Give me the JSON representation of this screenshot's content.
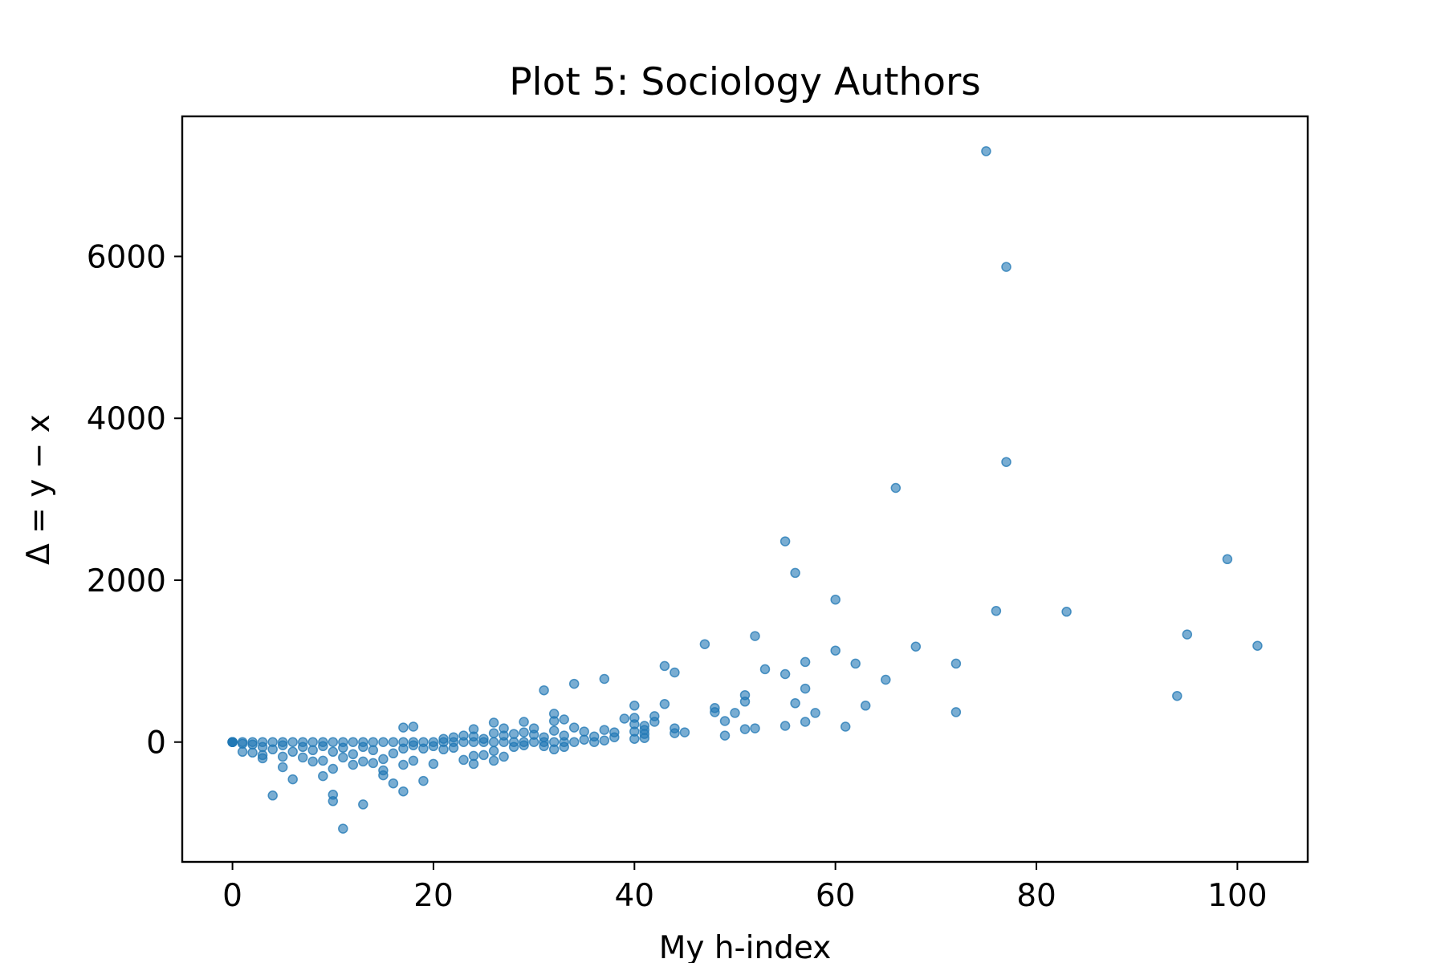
{
  "chart_data": {
    "type": "scatter",
    "title": "Plot 5: Sociology Authors",
    "xlabel": "My h-index",
    "ylabel": "Δ = y − x",
    "xlim": [
      -5,
      107
    ],
    "ylim": [
      -1480,
      7730
    ],
    "xticks": [
      0,
      20,
      40,
      60,
      80,
      100
    ],
    "yticks": [
      0,
      2000,
      4000,
      6000
    ],
    "xtick_labels": [
      "0",
      "20",
      "40",
      "60",
      "80",
      "100"
    ],
    "ytick_labels": [
      "0",
      "2000",
      "4000",
      "6000"
    ],
    "grid": false,
    "legend": "none",
    "marker_color": "#1f77b4",
    "marker_alpha": 0.6,
    "series": [
      {
        "points": [
          [
            0,
            0
          ],
          [
            0,
            0
          ],
          [
            0,
            0
          ],
          [
            0,
            0
          ],
          [
            0,
            0
          ],
          [
            1,
            0
          ],
          [
            1,
            -20
          ],
          [
            1,
            -120
          ],
          [
            2,
            0
          ],
          [
            2,
            -30
          ],
          [
            2,
            -130
          ],
          [
            3,
            0
          ],
          [
            3,
            -60
          ],
          [
            3,
            -160
          ],
          [
            3,
            -200
          ],
          [
            4,
            0
          ],
          [
            4,
            -90
          ],
          [
            4,
            -660
          ],
          [
            5,
            0
          ],
          [
            5,
            -40
          ],
          [
            5,
            -180
          ],
          [
            5,
            -310
          ],
          [
            6,
            0
          ],
          [
            6,
            -120
          ],
          [
            6,
            -460
          ],
          [
            7,
            0
          ],
          [
            7,
            -60
          ],
          [
            7,
            -190
          ],
          [
            8,
            0
          ],
          [
            8,
            -100
          ],
          [
            8,
            -240
          ],
          [
            9,
            0
          ],
          [
            9,
            -50
          ],
          [
            9,
            -230
          ],
          [
            9,
            -420
          ],
          [
            10,
            0
          ],
          [
            10,
            -120
          ],
          [
            10,
            -330
          ],
          [
            10,
            -650
          ],
          [
            10,
            -730
          ],
          [
            11,
            0
          ],
          [
            11,
            -70
          ],
          [
            11,
            -190
          ],
          [
            11,
            -1070
          ],
          [
            12,
            0
          ],
          [
            12,
            -150
          ],
          [
            12,
            -280
          ],
          [
            13,
            0
          ],
          [
            13,
            -60
          ],
          [
            13,
            -240
          ],
          [
            13,
            -770
          ],
          [
            14,
            0
          ],
          [
            14,
            -100
          ],
          [
            14,
            -260
          ],
          [
            15,
            0
          ],
          [
            15,
            -210
          ],
          [
            15,
            -350
          ],
          [
            15,
            -410
          ],
          [
            16,
            0
          ],
          [
            16,
            -140
          ],
          [
            16,
            -510
          ],
          [
            17,
            0
          ],
          [
            17,
            -80
          ],
          [
            17,
            -280
          ],
          [
            17,
            -610
          ],
          [
            17,
            180
          ],
          [
            18,
            0
          ],
          [
            18,
            -40
          ],
          [
            18,
            -230
          ],
          [
            18,
            190
          ],
          [
            19,
            0
          ],
          [
            19,
            -80
          ],
          [
            19,
            -480
          ],
          [
            20,
            0
          ],
          [
            20,
            -50
          ],
          [
            20,
            -270
          ],
          [
            21,
            0
          ],
          [
            21,
            40
          ],
          [
            21,
            -90
          ],
          [
            22,
            0
          ],
          [
            22,
            60
          ],
          [
            22,
            -70
          ],
          [
            23,
            0
          ],
          [
            23,
            80
          ],
          [
            23,
            -220
          ],
          [
            24,
            0
          ],
          [
            24,
            70
          ],
          [
            24,
            160
          ],
          [
            24,
            -170
          ],
          [
            24,
            -270
          ],
          [
            25,
            0
          ],
          [
            25,
            40
          ],
          [
            25,
            -160
          ],
          [
            26,
            0
          ],
          [
            26,
            110
          ],
          [
            26,
            240
          ],
          [
            26,
            -110
          ],
          [
            26,
            -230
          ],
          [
            27,
            0
          ],
          [
            27,
            80
          ],
          [
            27,
            170
          ],
          [
            27,
            -180
          ],
          [
            28,
            0
          ],
          [
            28,
            100
          ],
          [
            28,
            -60
          ],
          [
            29,
            0
          ],
          [
            29,
            120
          ],
          [
            29,
            250
          ],
          [
            29,
            -40
          ],
          [
            30,
            0
          ],
          [
            30,
            90
          ],
          [
            30,
            170
          ],
          [
            31,
            0
          ],
          [
            31,
            60
          ],
          [
            31,
            640
          ],
          [
            31,
            -50
          ],
          [
            32,
            0
          ],
          [
            32,
            140
          ],
          [
            32,
            260
          ],
          [
            32,
            350
          ],
          [
            32,
            -90
          ],
          [
            33,
            0
          ],
          [
            33,
            80
          ],
          [
            33,
            280
          ],
          [
            33,
            -60
          ],
          [
            34,
            0
          ],
          [
            34,
            180
          ],
          [
            34,
            720
          ],
          [
            35,
            30
          ],
          [
            35,
            130
          ],
          [
            36,
            0
          ],
          [
            36,
            70
          ],
          [
            37,
            20
          ],
          [
            37,
            150
          ],
          [
            37,
            780
          ],
          [
            38,
            60
          ],
          [
            38,
            120
          ],
          [
            39,
            290
          ],
          [
            40,
            40
          ],
          [
            40,
            130
          ],
          [
            40,
            220
          ],
          [
            40,
            300
          ],
          [
            40,
            450
          ],
          [
            41,
            50
          ],
          [
            41,
            100
          ],
          [
            41,
            150
          ],
          [
            41,
            200
          ],
          [
            42,
            250
          ],
          [
            42,
            320
          ],
          [
            43,
            470
          ],
          [
            43,
            940
          ],
          [
            44,
            110
          ],
          [
            44,
            170
          ],
          [
            44,
            860
          ],
          [
            45,
            120
          ],
          [
            47,
            1210
          ],
          [
            48,
            370
          ],
          [
            48,
            420
          ],
          [
            49,
            80
          ],
          [
            49,
            260
          ],
          [
            50,
            360
          ],
          [
            51,
            160
          ],
          [
            51,
            500
          ],
          [
            51,
            580
          ],
          [
            52,
            170
          ],
          [
            52,
            1310
          ],
          [
            53,
            900
          ],
          [
            55,
            200
          ],
          [
            55,
            840
          ],
          [
            55,
            2480
          ],
          [
            56,
            480
          ],
          [
            56,
            2090
          ],
          [
            57,
            250
          ],
          [
            57,
            660
          ],
          [
            57,
            990
          ],
          [
            58,
            360
          ],
          [
            60,
            1130
          ],
          [
            60,
            1760
          ],
          [
            61,
            190
          ],
          [
            62,
            970
          ],
          [
            63,
            450
          ],
          [
            65,
            770
          ],
          [
            66,
            3140
          ],
          [
            68,
            1180
          ],
          [
            72,
            370
          ],
          [
            72,
            970
          ],
          [
            75,
            7300
          ],
          [
            76,
            1620
          ],
          [
            77,
            3460
          ],
          [
            77,
            5870
          ],
          [
            83,
            1610
          ],
          [
            94,
            570
          ],
          [
            95,
            1330
          ],
          [
            99,
            2260
          ],
          [
            102,
            1190
          ]
        ]
      }
    ]
  }
}
